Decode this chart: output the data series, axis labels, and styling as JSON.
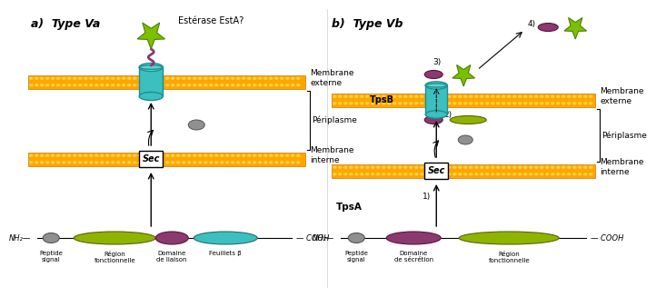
{
  "bg_color": "#ffffff",
  "membrane_color": "#FFA500",
  "cylinder_color": "#3DBFBF",
  "cylinder_edge_color": "#1A9090",
  "star_color": "#7CBF00",
  "star_edge_color": "#4A8000",
  "purple_color": "#8B3A6E",
  "green_domain_color": "#8DB500",
  "teal_domain_color": "#3DBFBF",
  "gray_color": "#909090",
  "title_a": "a)  Type Va",
  "title_b": "b)  Type Vb",
  "estease_label": "Estérase EstA?",
  "mem_ext_label": "Membrane\nexterne",
  "periplasm_label": "Périplasme",
  "mem_int_label": "Membrane\ninterne",
  "tpsb_label": "TpsB",
  "tpsa_label": "TpsA",
  "nh2_label": "NH₂",
  "cooh_label": "COOH",
  "peptide_signal_label": "Peptide\nsignal",
  "region_fonct_label_a": "Région\nfonctionnelle",
  "domaine_liaison_label": "Domaine\nde liaison",
  "feuillets_label": "Feuillets β",
  "peptide_signal_label_b": "Peptide\nsignal",
  "domaine_secretion_label": "Domaine\nde sécrétion",
  "region_fonct_label_b": "Région\nfonctionnelle"
}
